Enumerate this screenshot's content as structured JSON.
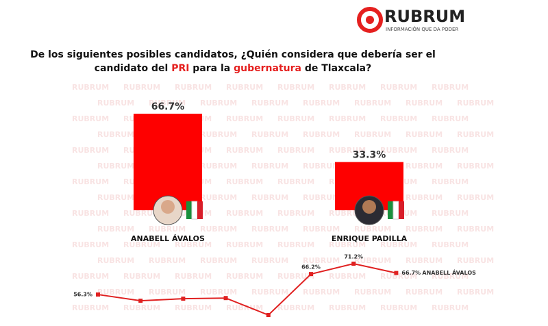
{
  "header": {
    "brand": "RUBRUM",
    "tagline": "INFORMACIÓN QUE DA PODER"
  },
  "question": [
    "De los siguientes posibles candidatos, ¿Quién considera que debería ser el",
    "candidato del ",
    "PRI",
    " para la ",
    "gubernatura",
    " de Tlaxcala?"
  ],
  "chart_data": [
    {
      "type": "bar",
      "categories": [
        "ANABELL ÁVALOS",
        "ENRIQUE PADILLA"
      ],
      "values": [
        66.7,
        33.3
      ],
      "value_labels": [
        "66.7%",
        "33.3%"
      ],
      "color": "#fe0000"
    },
    {
      "type": "line",
      "categories": [
        null,
        null,
        null,
        null,
        null,
        null,
        null,
        null
      ],
      "series": [
        {
          "name": "ANABELL ÁVALOS",
          "color": "#e02020",
          "values": [
            56.3,
            53.3,
            54.3,
            54.6,
            46.4,
            66.2,
            71.2,
            66.7
          ],
          "value_labels": [
            "56.3%",
            null,
            null,
            null,
            null,
            "66.2%",
            "71.2%",
            "66.7%"
          ]
        }
      ]
    }
  ]
}
